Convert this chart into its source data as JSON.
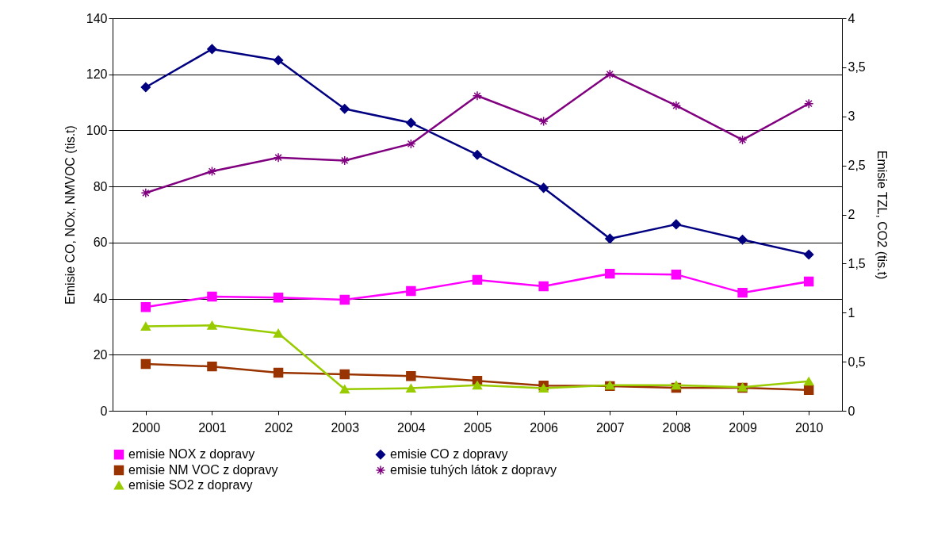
{
  "chart_data": {
    "type": "line",
    "xlabel": null,
    "ylabel": "Emisie CO, NOx, NMVOC (tis.t)",
    "y2label": "Emisie TZL, CO2 (tis.t)",
    "categories": [
      "2000",
      "2001",
      "2002",
      "2003",
      "2004",
      "2005",
      "2006",
      "2007",
      "2008",
      "2009",
      "2010"
    ],
    "ylim": [
      0,
      140
    ],
    "yticks": [
      0,
      20,
      40,
      60,
      80,
      100,
      120,
      140
    ],
    "y2lim": [
      0,
      4
    ],
    "y2ticks": [
      0,
      {
        "value": 0.5,
        "label": "0,5"
      },
      1,
      {
        "value": 1.5,
        "label": "1,5"
      },
      2,
      {
        "value": 2.5,
        "label": "2,5"
      },
      3,
      {
        "value": 3.5,
        "label": "3,5"
      },
      4
    ],
    "grid": "y",
    "legend": "bottom",
    "line_style": "solid",
    "series": [
      {
        "name": "emisie NOX z dopravy",
        "color": "#ff00ff",
        "marker": "square",
        "values": [
          37,
          40.7,
          40.4,
          39.6,
          42.7,
          46.7,
          44.4,
          48.9,
          48.6,
          42.1,
          46.1
        ]
      },
      {
        "name": "emisie CO z dopravy",
        "color": "#000080",
        "marker": "diamond",
        "values": [
          115.4,
          129,
          125,
          107.7,
          102.7,
          91.3,
          79.5,
          61.4,
          66.5,
          61,
          55.7
        ]
      },
      {
        "name": "emisie NM VOC z dopravy",
        "color": "#993300",
        "marker": "square",
        "values": [
          16.7,
          15.8,
          13.6,
          13,
          12.4,
          10.7,
          9,
          8.8,
          8.2,
          8.2,
          7.4
        ]
      },
      {
        "name": "emisie tuhých látok z dopravy",
        "color": "#800080",
        "marker": "cross",
        "axis": "y2",
        "values": [
          2.22,
          2.44,
          2.58,
          2.55,
          2.72,
          3.21,
          2.95,
          3.43,
          3.11,
          2.76,
          3.13
        ]
      },
      {
        "name": "emisie SO2 z dopravy",
        "color": "#99cc00",
        "marker": "triangle",
        "axis": "y2",
        "values": [
          0.86,
          0.87,
          0.79,
          0.22,
          0.23,
          0.26,
          0.23,
          0.26,
          0.26,
          0.24,
          0.3
        ]
      }
    ]
  }
}
